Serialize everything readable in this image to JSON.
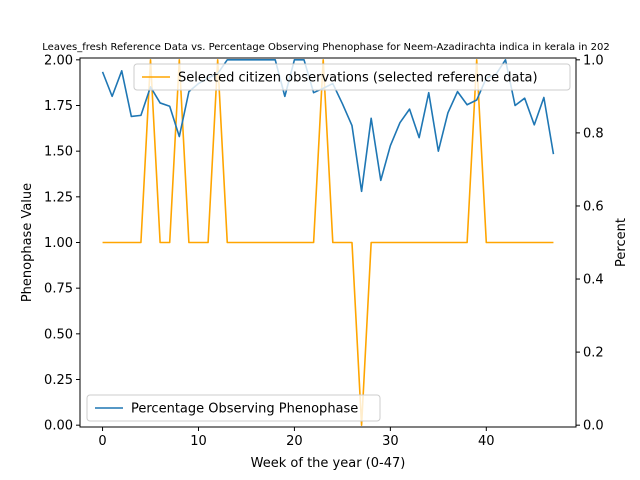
{
  "chart_data": {
    "type": "line",
    "title": "Leaves_fresh Reference Data vs. Percentage Observing Phenophase for Neem-Azadirachta indica in kerala in 202",
    "xlabel": "Week of the year (0-47)",
    "ylabel_left": "Phenophase Value",
    "ylabel_right": "Percent",
    "xlim": [
      -2.35,
      49.35
    ],
    "ylim_left": [
      -0.01,
      2.01
    ],
    "ylim_right": [
      -0.005,
      1.005
    ],
    "x_ticks": [
      0,
      10,
      20,
      30,
      40
    ],
    "y_ticks_left": [
      "0.00",
      "0.25",
      "0.50",
      "0.75",
      "1.00",
      "1.25",
      "1.50",
      "1.75",
      "2.00"
    ],
    "y_ticks_right": [
      "0.0",
      "0.2",
      "0.4",
      "0.6",
      "0.8",
      "1.0"
    ],
    "series": [
      {
        "name": "Selected citizen observations (selected reference data)",
        "axis": "left",
        "color": "#ffa500",
        "x": [
          0,
          1,
          2,
          3,
          4,
          5,
          6,
          7,
          8,
          9,
          10,
          11,
          12,
          13,
          14,
          15,
          16,
          17,
          18,
          19,
          20,
          21,
          22,
          23,
          24,
          25,
          26,
          27,
          28,
          29,
          30,
          31,
          32,
          33,
          34,
          35,
          36,
          37,
          38,
          39,
          40,
          41,
          42,
          43,
          44,
          45,
          46,
          47
        ],
        "values": [
          1,
          1,
          1,
          1,
          1,
          2,
          1,
          1,
          2,
          1,
          1,
          1,
          2,
          1,
          1,
          1,
          1,
          1,
          1,
          1,
          1,
          1,
          1,
          2,
          1,
          1,
          1,
          0,
          1,
          1,
          1,
          1,
          1,
          1,
          1,
          1,
          1,
          1,
          1,
          2,
          1,
          1,
          1,
          1,
          1,
          1,
          1,
          1
        ]
      },
      {
        "name": "Percentage Observing Phenophase",
        "axis": "right",
        "color": "#1f77b4",
        "x": [
          0,
          1,
          2,
          3,
          4,
          5,
          6,
          7,
          8,
          9,
          10,
          11,
          12,
          13,
          14,
          15,
          16,
          17,
          18,
          19,
          20,
          21,
          22,
          23,
          24,
          25,
          26,
          27,
          28,
          29,
          30,
          31,
          32,
          33,
          34,
          35,
          36,
          37,
          38,
          39,
          40,
          41,
          42,
          43,
          44,
          45,
          46,
          47
        ],
        "values": [
          0.967,
          0.9,
          0.97,
          0.845,
          0.848,
          0.926,
          0.882,
          0.873,
          0.79,
          0.913,
          0.935,
          0.95,
          0.962,
          1.0,
          1.0,
          1.0,
          1.0,
          1.0,
          1.0,
          0.9,
          1.0,
          1.0,
          0.91,
          0.922,
          0.935,
          0.88,
          0.82,
          0.64,
          0.84,
          0.67,
          0.765,
          0.828,
          0.865,
          0.787,
          0.91,
          0.75,
          0.855,
          0.913,
          0.877,
          0.89,
          0.95,
          0.96,
          1.0,
          0.875,
          0.895,
          0.822,
          0.897,
          0.742
        ]
      }
    ],
    "legends": [
      {
        "placement": "top-right",
        "entry": "Selected citizen observations (selected reference data)"
      },
      {
        "placement": "bottom-left",
        "entry": "Percentage Observing Phenophase"
      }
    ],
    "grid": false
  }
}
